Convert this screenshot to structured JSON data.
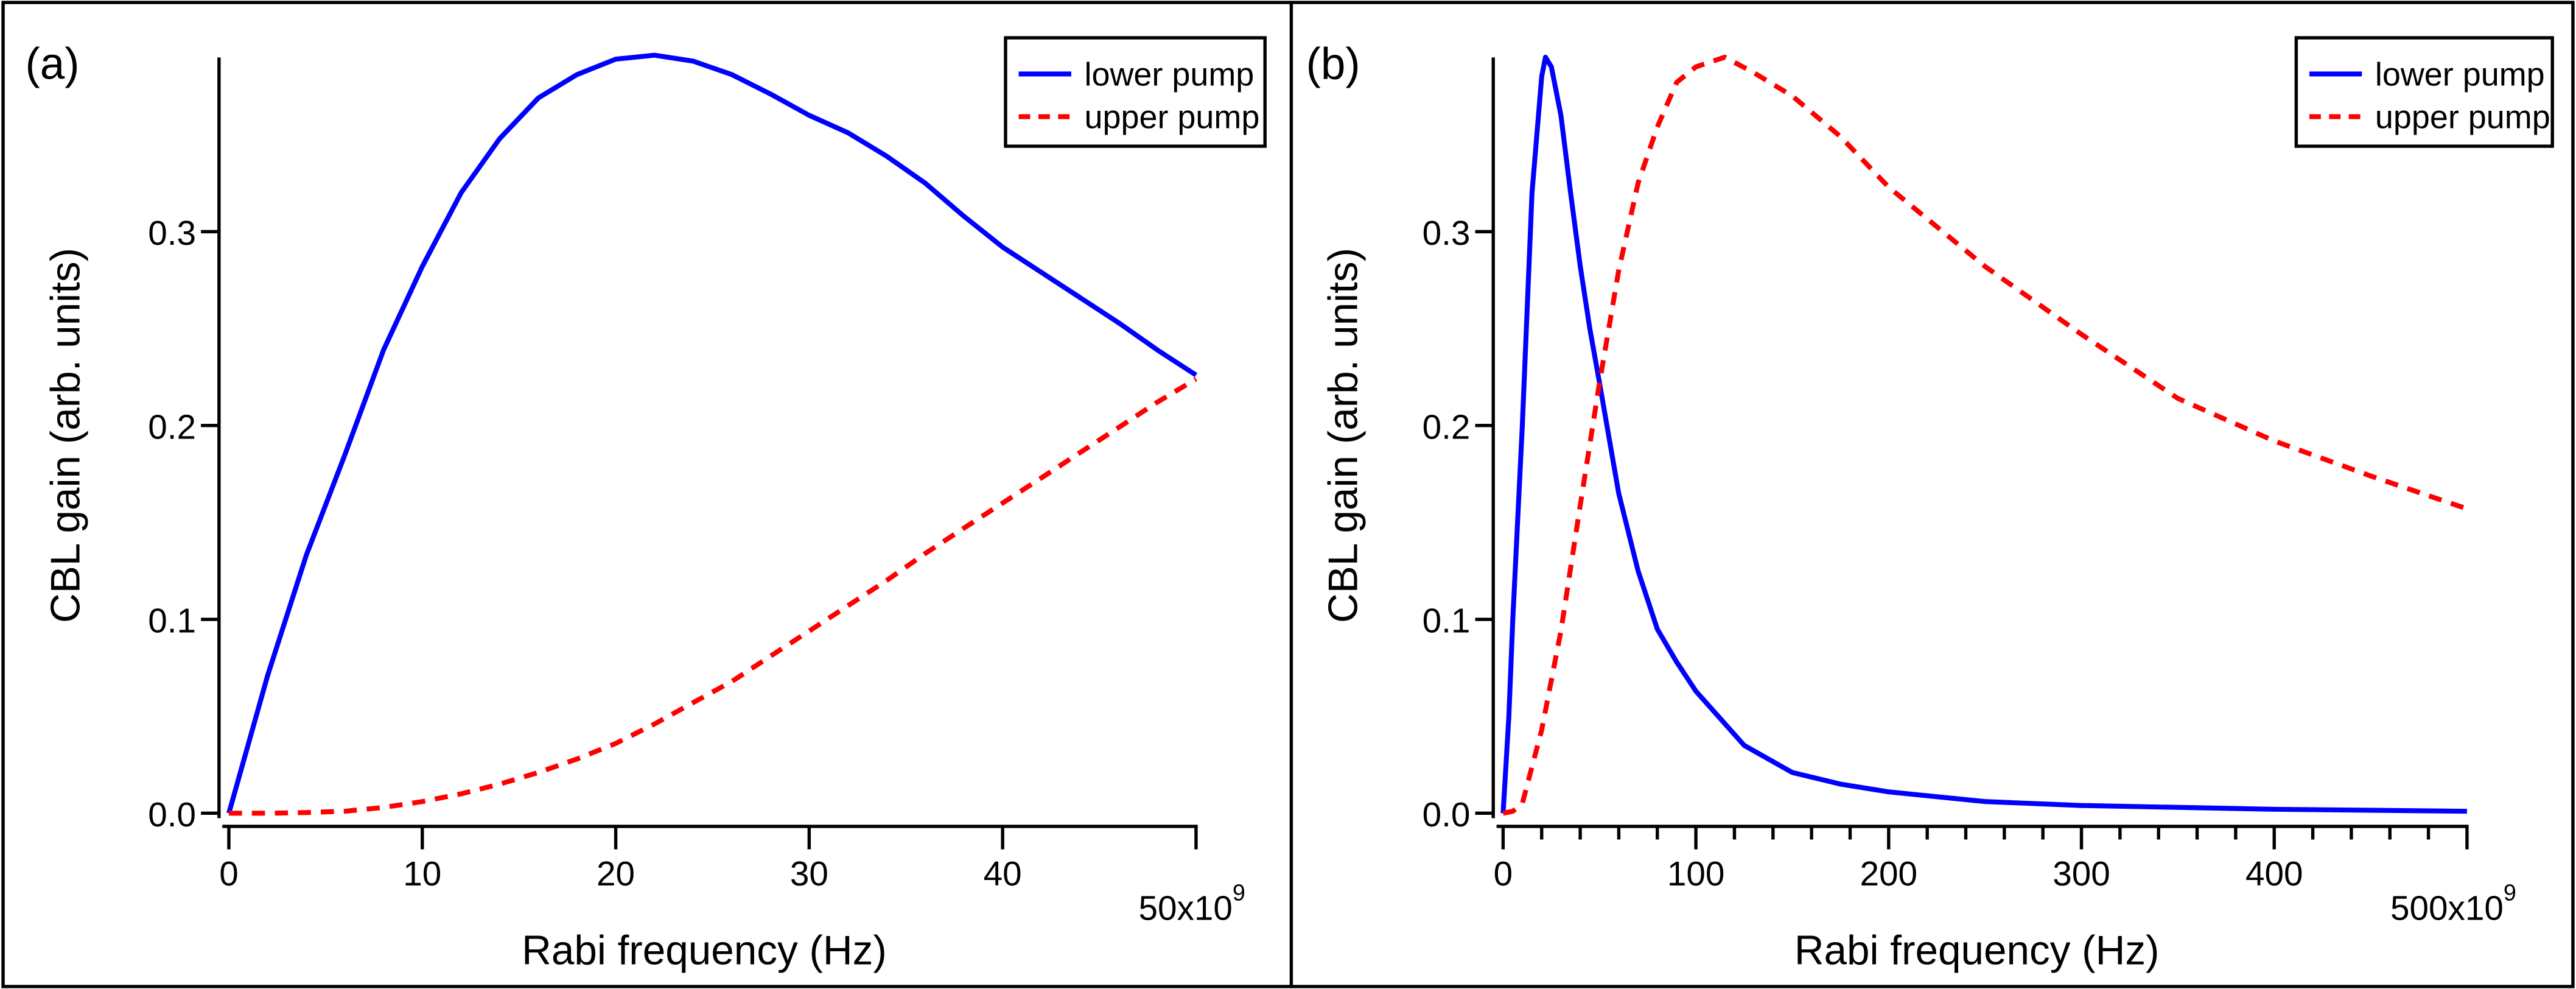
{
  "chart_data": [
    {
      "type": "line",
      "panel_label": "(a)",
      "xlabel": "Rabi frequency (Hz)",
      "ylabel": "CBL gain (arb. units)",
      "x_multiplier_label": "50x10",
      "x_multiplier_exp": "9",
      "xlim": [
        0,
        50
      ],
      "ylim": [
        0,
        0.39
      ],
      "xticks": [
        0,
        10,
        20,
        30,
        40
      ],
      "xtick_labels": [
        "0",
        "10",
        "20",
        "30",
        "40"
      ],
      "x_minor_ticks": [],
      "yticks": [
        0,
        0.1,
        0.2,
        0.3
      ],
      "ytick_labels": [
        "0.0",
        "0.1",
        "0.2",
        "0.3"
      ],
      "grid": false,
      "legend_position": "top-right",
      "series": [
        {
          "name": "lower pump",
          "color": "#0000ff",
          "style": "solid",
          "x": [
            0,
            2,
            4,
            6,
            8,
            10,
            12,
            14,
            16,
            18,
            20,
            22,
            24,
            26,
            28,
            30,
            32,
            34,
            36,
            38,
            40,
            42,
            44,
            46,
            48,
            50
          ],
          "y": [
            0,
            0.071,
            0.133,
            0.185,
            0.239,
            0.282,
            0.32,
            0.348,
            0.369,
            0.381,
            0.389,
            0.391,
            0.388,
            0.381,
            0.371,
            0.36,
            0.351,
            0.339,
            0.325,
            0.308,
            0.292,
            0.279,
            0.266,
            0.253,
            0.239,
            0.226
          ]
        },
        {
          "name": "upper pump",
          "color": "#ff0000",
          "style": "dashed",
          "x": [
            0,
            2,
            4,
            6,
            8,
            10,
            12,
            14,
            16,
            18,
            20,
            22,
            24,
            26,
            28,
            30,
            32,
            34,
            36,
            38,
            40,
            42,
            44,
            46,
            48,
            50
          ],
          "y": [
            0,
            0,
            0.0003,
            0.001,
            0.003,
            0.006,
            0.01,
            0.015,
            0.021,
            0.028,
            0.036,
            0.046,
            0.057,
            0.068,
            0.081,
            0.094,
            0.107,
            0.12,
            0.134,
            0.147,
            0.16,
            0.173,
            0.186,
            0.199,
            0.212,
            0.224
          ]
        }
      ]
    },
    {
      "type": "line",
      "panel_label": "(b)",
      "xlabel": "Rabi frequency (Hz)",
      "ylabel": "CBL gain (arb. units)",
      "x_multiplier_label": "500x10",
      "x_multiplier_exp": "9",
      "xlim": [
        0,
        500
      ],
      "ylim": [
        0,
        0.39
      ],
      "xticks": [
        0,
        100,
        200,
        300,
        400
      ],
      "xtick_labels": [
        "0",
        "100",
        "200",
        "300",
        "400"
      ],
      "x_minor_ticks": [
        20,
        40,
        60,
        80,
        120,
        140,
        160,
        180,
        220,
        240,
        260,
        280,
        320,
        340,
        360,
        380,
        420,
        440,
        460,
        480
      ],
      "yticks": [
        0,
        0.1,
        0.2,
        0.3
      ],
      "ytick_labels": [
        "0.0",
        "0.1",
        "0.2",
        "0.3"
      ],
      "grid": false,
      "legend_position": "top-right",
      "series": [
        {
          "name": "lower pump",
          "color": "#0000ff",
          "style": "solid",
          "x": [
            0,
            3,
            5,
            10,
            15,
            20,
            22,
            25,
            30,
            35,
            40,
            45,
            50,
            60,
            70,
            80,
            90,
            100,
            125,
            150,
            175,
            200,
            250,
            300,
            400,
            500
          ],
          "y": [
            0,
            0.05,
            0.1,
            0.2,
            0.32,
            0.38,
            0.39,
            0.385,
            0.36,
            0.32,
            0.282,
            0.25,
            0.222,
            0.165,
            0.125,
            0.095,
            0.078,
            0.063,
            0.035,
            0.021,
            0.015,
            0.011,
            0.006,
            0.004,
            0.002,
            0.001
          ]
        },
        {
          "name": "upper pump",
          "color": "#ff0000",
          "style": "dashed",
          "x": [
            0,
            5,
            10,
            20,
            30,
            40,
            50,
            60,
            70,
            80,
            90,
            100,
            115,
            130,
            150,
            175,
            200,
            250,
            300,
            350,
            400,
            450,
            500
          ],
          "y": [
            0,
            0.001,
            0.005,
            0.043,
            0.094,
            0.159,
            0.222,
            0.28,
            0.325,
            0.354,
            0.377,
            0.385,
            0.39,
            0.382,
            0.37,
            0.349,
            0.323,
            0.282,
            0.247,
            0.214,
            0.192,
            0.174,
            0.157
          ]
        }
      ]
    }
  ]
}
